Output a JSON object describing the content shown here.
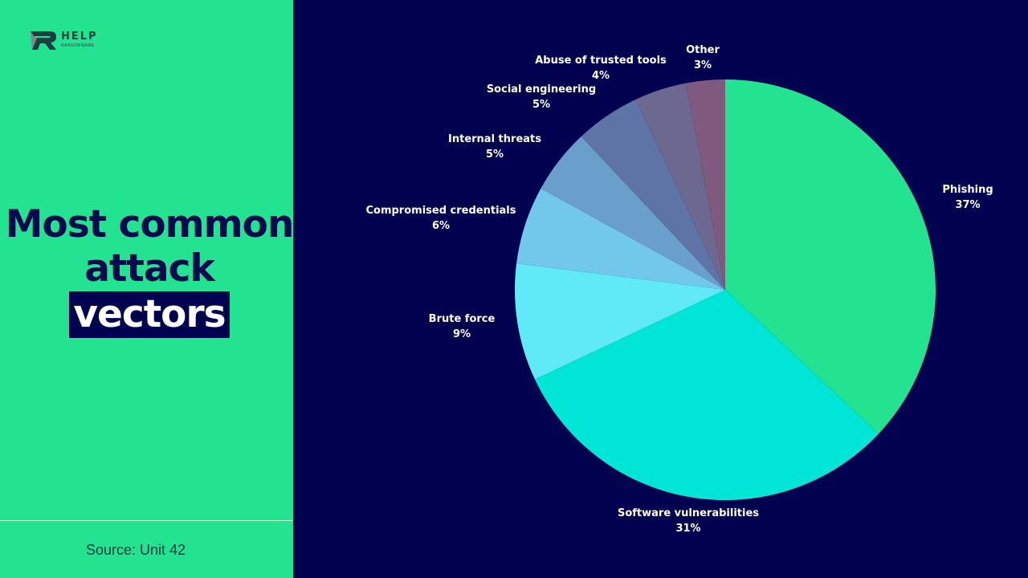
{
  "brand": {
    "name": "HELP",
    "subtitle": "RANSOMWARE"
  },
  "title": {
    "line1": "Most common",
    "line2": "attack",
    "highlight": "vectors"
  },
  "source": "Source: Unit 42",
  "chart_data": {
    "type": "pie",
    "title": "Most common attack vectors",
    "start_angle_deg": 0,
    "direction": "clockwise",
    "slices": [
      {
        "label": "Phishing",
        "value": 37,
        "display": "37%",
        "color": "#24e390"
      },
      {
        "label": "Software vulnerabilities",
        "value": 31,
        "display": "31%",
        "color": "#00e6d6"
      },
      {
        "label": "Brute force",
        "value": 9,
        "display": "9%",
        "color": "#60eaf8"
      },
      {
        "label": "Compromised credentials",
        "value": 6,
        "display": "6%",
        "color": "#72c8ea"
      },
      {
        "label": "Internal threats",
        "value": 5,
        "display": "5%",
        "color": "#6a9ecb"
      },
      {
        "label": "Social engineering",
        "value": 5,
        "display": "5%",
        "color": "#5e74a6"
      },
      {
        "label": "Abuse of trusted tools",
        "value": 4,
        "display": "4%",
        "color": "#6c6890"
      },
      {
        "label": "Other",
        "value": 3,
        "display": "3%",
        "color": "#7f5a7e"
      }
    ]
  }
}
